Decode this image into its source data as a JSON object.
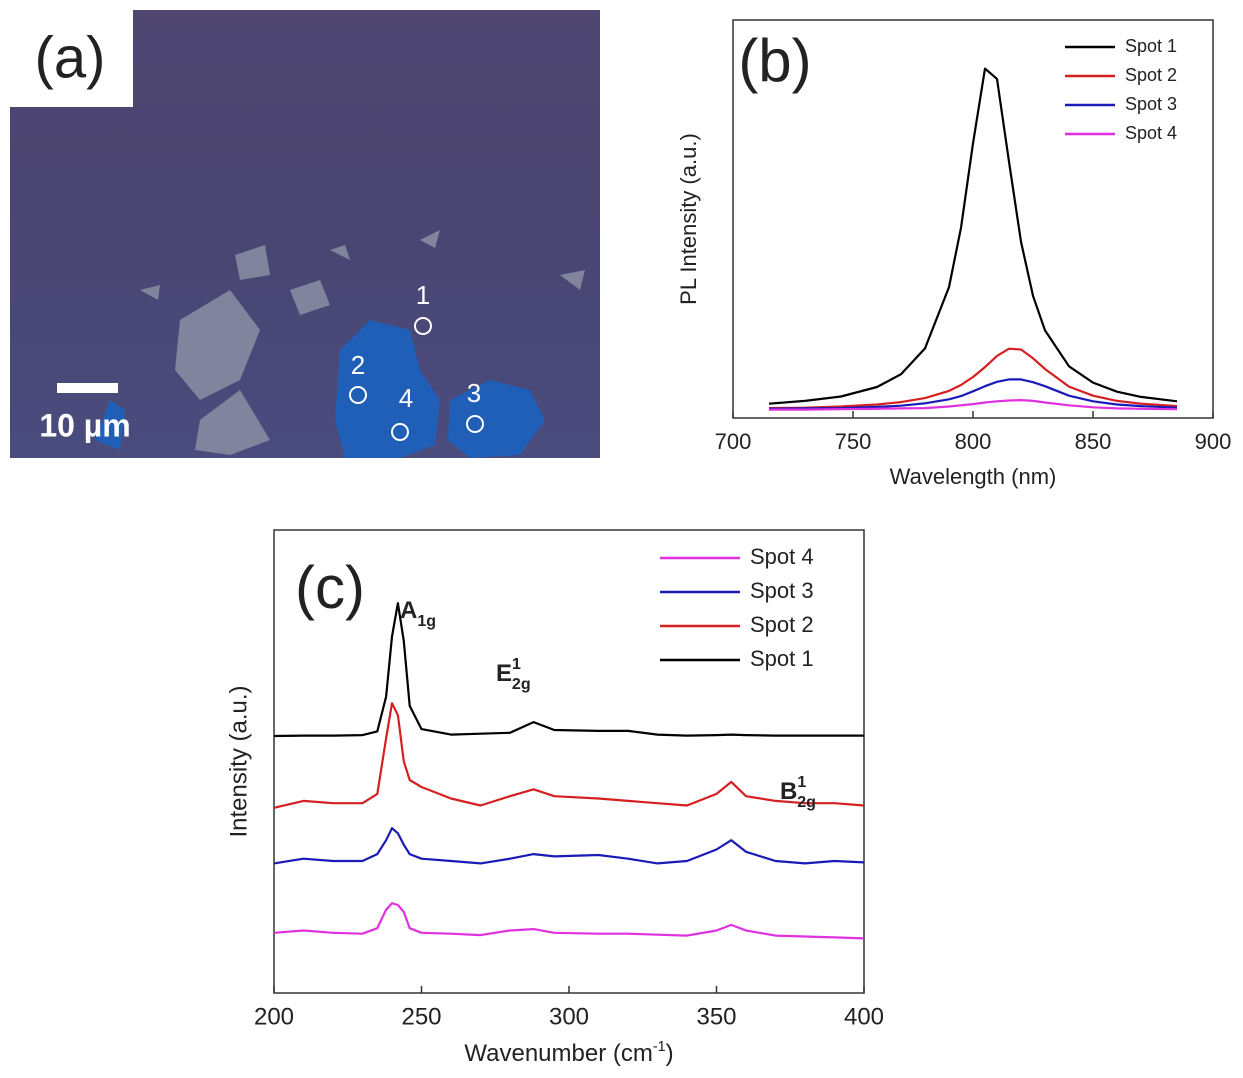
{
  "image_panel": {
    "panel_label": "(a)",
    "scale_bar": "10 µm",
    "spots": [
      "1",
      "2",
      "3",
      "4"
    ]
  },
  "chart_data": [
    {
      "type": "line",
      "panel_label": "(b)",
      "x_label": "Wavelength (nm)",
      "y_label": "PL Intensity (a.u.)",
      "xlim": [
        700,
        900
      ],
      "xticks": [
        700,
        750,
        800,
        850,
        900
      ],
      "ylim": [
        0,
        1
      ],
      "legend": "upper right",
      "x": [
        715,
        730,
        745,
        760,
        770,
        780,
        790,
        795,
        800,
        805,
        810,
        815,
        820,
        825,
        830,
        840,
        850,
        860,
        870,
        885
      ],
      "series": [
        {
          "name": "Spot 1",
          "color": "#000000",
          "values": [
            0.036,
            0.043,
            0.054,
            0.078,
            0.11,
            0.175,
            0.329,
            0.478,
            0.69,
            0.878,
            0.852,
            0.644,
            0.443,
            0.307,
            0.22,
            0.13,
            0.089,
            0.066,
            0.053,
            0.042
          ]
        },
        {
          "name": "Spot 2",
          "color": "#d42020",
          "values": [
            0.025,
            0.026,
            0.029,
            0.034,
            0.04,
            0.05,
            0.068,
            0.083,
            0.103,
            0.128,
            0.156,
            0.174,
            0.172,
            0.15,
            0.123,
            0.079,
            0.056,
            0.043,
            0.036,
            0.03
          ]
        },
        {
          "name": "Spot 3",
          "color": "#1a1ab8",
          "values": [
            0.023,
            0.024,
            0.025,
            0.028,
            0.031,
            0.037,
            0.047,
            0.055,
            0.067,
            0.08,
            0.091,
            0.097,
            0.097,
            0.09,
            0.08,
            0.056,
            0.042,
            0.034,
            0.03,
            0.026
          ]
        },
        {
          "name": "Spot 4",
          "color": "#e030e0",
          "values": [
            0.021,
            0.021,
            0.022,
            0.023,
            0.024,
            0.025,
            0.029,
            0.032,
            0.035,
            0.039,
            0.042,
            0.044,
            0.045,
            0.043,
            0.039,
            0.032,
            0.027,
            0.024,
            0.023,
            0.022
          ]
        }
      ]
    },
    {
      "type": "line",
      "panel_label": "(c)",
      "x_label": [
        "Wavenumber (cm",
        "-1",
        ")"
      ],
      "y_label": "Intensity (a.u.)",
      "xlim": [
        200,
        400
      ],
      "xticks": [
        200,
        250,
        300,
        350,
        400
      ],
      "ylim": [
        0,
        1
      ],
      "legend": "upper right",
      "annotations": [
        {
          "base": "A",
          "sub": "1g"
        },
        {
          "base": "E",
          "sup": "1",
          "sub": "2g"
        },
        {
          "base": "B",
          "sup": "1",
          "sub": "2g"
        }
      ],
      "x": [
        200,
        210,
        220,
        230,
        235,
        238,
        240,
        242,
        244,
        246,
        250,
        260,
        270,
        280,
        288,
        295,
        310,
        320,
        330,
        340,
        350,
        355,
        360,
        370,
        380,
        390,
        400
      ],
      "series": [
        {
          "name": "Spot 4",
          "color": "#e030e0",
          "values": [
            0.13,
            0.135,
            0.13,
            0.128,
            0.14,
            0.18,
            0.194,
            0.19,
            0.175,
            0.14,
            0.13,
            0.128,
            0.125,
            0.135,
            0.138,
            0.13,
            0.128,
            0.128,
            0.126,
            0.124,
            0.135,
            0.147,
            0.135,
            0.124,
            0.122,
            0.12,
            0.118
          ]
        },
        {
          "name": "Spot 3",
          "color": "#1a1ab8",
          "values": [
            0.28,
            0.29,
            0.285,
            0.285,
            0.3,
            0.33,
            0.356,
            0.345,
            0.32,
            0.3,
            0.29,
            0.285,
            0.28,
            0.29,
            0.3,
            0.295,
            0.298,
            0.29,
            0.28,
            0.285,
            0.31,
            0.33,
            0.305,
            0.285,
            0.28,
            0.285,
            0.282
          ]
        },
        {
          "name": "Spot 2",
          "color": "#d42020",
          "values": [
            0.4,
            0.415,
            0.41,
            0.41,
            0.43,
            0.55,
            0.626,
            0.6,
            0.5,
            0.46,
            0.445,
            0.42,
            0.405,
            0.425,
            0.44,
            0.425,
            0.42,
            0.415,
            0.41,
            0.405,
            0.43,
            0.456,
            0.425,
            0.415,
            0.41,
            0.41,
            0.405
          ]
        },
        {
          "name": "Spot 1",
          "color": "#000000",
          "values": [
            0.555,
            0.556,
            0.556,
            0.557,
            0.565,
            0.64,
            0.77,
            0.842,
            0.76,
            0.62,
            0.57,
            0.558,
            0.56,
            0.562,
            0.585,
            0.568,
            0.566,
            0.566,
            0.558,
            0.556,
            0.557,
            0.558,
            0.557,
            0.556,
            0.556,
            0.556,
            0.556
          ]
        }
      ]
    }
  ]
}
